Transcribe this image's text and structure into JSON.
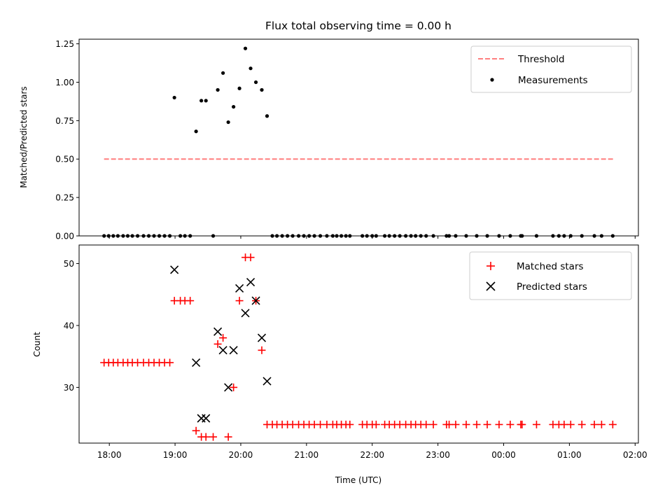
{
  "figure": {
    "title": "Flux total observing time = 0.00 h"
  },
  "chart_data": [
    {
      "type": "scatter",
      "ylabel": "Matched/Predicted stars",
      "xlabel": "",
      "ylim": [
        0,
        1.28
      ],
      "yticks": [
        0.0,
        0.25,
        0.5,
        0.75,
        1.0,
        1.25
      ],
      "ytick_labels": [
        "0.00",
        "0.25",
        "0.50",
        "0.75",
        "1.00",
        "1.25"
      ],
      "xlim_hours": [
        17.54,
        26.05
      ],
      "grid": false,
      "legend": "top-right",
      "series": [
        {
          "name": "Threshold",
          "style": "dashed-line",
          "color": "#ff7f7f",
          "x": [
            17.92,
            25.67
          ],
          "y": [
            0.5,
            0.5
          ]
        },
        {
          "name": "Measurements",
          "style": "dot",
          "color": "#000000",
          "x": [
            17.92,
            17.99,
            18.06,
            18.13,
            18.21,
            18.28,
            18.35,
            18.43,
            18.52,
            18.6,
            18.68,
            18.76,
            18.84,
            18.92,
            18.99,
            19.08,
            19.15,
            19.23,
            19.32,
            19.4,
            19.47,
            19.58,
            19.65,
            19.73,
            19.81,
            19.89,
            19.98,
            20.07,
            20.15,
            20.23,
            20.32,
            20.4,
            20.48,
            20.55,
            20.63,
            20.71,
            20.79,
            20.88,
            20.96,
            21.04,
            21.12,
            21.21,
            21.31,
            21.4,
            21.46,
            21.53,
            21.6,
            21.66,
            21.85,
            21.92,
            22.0,
            22.06,
            22.19,
            22.26,
            22.34,
            22.42,
            22.51,
            22.59,
            22.66,
            22.74,
            22.82,
            22.93,
            23.13,
            23.17,
            23.27,
            23.43,
            23.59,
            23.75,
            23.93,
            24.1,
            24.26,
            24.28,
            24.5,
            24.75,
            24.84,
            24.92,
            25.02,
            25.19,
            25.38,
            25.49,
            25.66
          ],
          "y": [
            0,
            0,
            0,
            0,
            0,
            0,
            0,
            0,
            0,
            0,
            0,
            0,
            0,
            0,
            0.9,
            0,
            0,
            0,
            0.68,
            0.88,
            0.88,
            0,
            0.95,
            1.06,
            0.74,
            0.84,
            0.96,
            1.22,
            1.09,
            1.0,
            0.95,
            0.78,
            0,
            0,
            0,
            0,
            0,
            0,
            0,
            0,
            0,
            0,
            0,
            0,
            0,
            0,
            0,
            0,
            0,
            0,
            0,
            0,
            0,
            0,
            0,
            0,
            0,
            0,
            0,
            0,
            0,
            0,
            0,
            0,
            0,
            0,
            0,
            0,
            0,
            0,
            0,
            0,
            0,
            0,
            0,
            0,
            0,
            0,
            0,
            0,
            0
          ]
        }
      ]
    },
    {
      "type": "scatter",
      "ylabel": "Count",
      "xlabel": "Time (UTC)",
      "ylim": [
        21,
        53
      ],
      "yticks": [
        30,
        40,
        50
      ],
      "ytick_labels": [
        "30",
        "40",
        "50"
      ],
      "xlim_hours": [
        17.54,
        26.05
      ],
      "xticks_hours": [
        18,
        19,
        20,
        21,
        22,
        23,
        24,
        25,
        26
      ],
      "xtick_labels": [
        "18:00",
        "19:00",
        "20:00",
        "21:00",
        "22:00",
        "23:00",
        "00:00",
        "01:00",
        "02:00"
      ],
      "grid": false,
      "legend": "top-right",
      "series": [
        {
          "name": "Matched stars",
          "style": "plus",
          "color": "#ff0000",
          "x": [
            17.92,
            17.99,
            18.06,
            18.13,
            18.21,
            18.28,
            18.35,
            18.43,
            18.52,
            18.6,
            18.68,
            18.76,
            18.84,
            18.92,
            18.99,
            19.08,
            19.15,
            19.23,
            19.32,
            19.4,
            19.47,
            19.58,
            19.65,
            19.73,
            19.81,
            19.89,
            19.98,
            20.07,
            20.15,
            20.23,
            20.32,
            20.4,
            20.48,
            20.55,
            20.63,
            20.71,
            20.79,
            20.88,
            20.96,
            21.04,
            21.12,
            21.21,
            21.31,
            21.4,
            21.46,
            21.53,
            21.6,
            21.66,
            21.85,
            21.92,
            22.0,
            22.06,
            22.19,
            22.26,
            22.34,
            22.42,
            22.51,
            22.59,
            22.66,
            22.74,
            22.82,
            22.93,
            23.13,
            23.17,
            23.27,
            23.43,
            23.59,
            23.75,
            23.93,
            24.1,
            24.26,
            24.28,
            24.5,
            24.75,
            24.84,
            24.92,
            25.02,
            25.19,
            25.38,
            25.49,
            25.66
          ],
          "y": [
            34,
            34,
            34,
            34,
            34,
            34,
            34,
            34,
            34,
            34,
            34,
            34,
            34,
            34,
            44,
            44,
            44,
            44,
            23,
            22,
            22,
            22,
            37,
            38,
            22,
            30,
            44,
            51,
            51,
            44,
            36,
            24,
            24,
            24,
            24,
            24,
            24,
            24,
            24,
            24,
            24,
            24,
            24,
            24,
            24,
            24,
            24,
            24,
            24,
            24,
            24,
            24,
            24,
            24,
            24,
            24,
            24,
            24,
            24,
            24,
            24,
            24,
            24,
            24,
            24,
            24,
            24,
            24,
            24,
            24,
            24,
            24,
            24,
            24,
            24,
            24,
            24,
            24,
            24,
            24,
            24
          ]
        },
        {
          "name": "Predicted stars",
          "style": "x",
          "color": "#000000",
          "x": [
            18.99,
            19.32,
            19.4,
            19.47,
            19.65,
            19.73,
            19.81,
            19.89,
            19.98,
            20.07,
            20.15,
            20.23,
            20.32,
            20.4
          ],
          "y": [
            49,
            34,
            25,
            25,
            39,
            36,
            30,
            36,
            46,
            42,
            47,
            44,
            38,
            31
          ]
        }
      ]
    }
  ]
}
